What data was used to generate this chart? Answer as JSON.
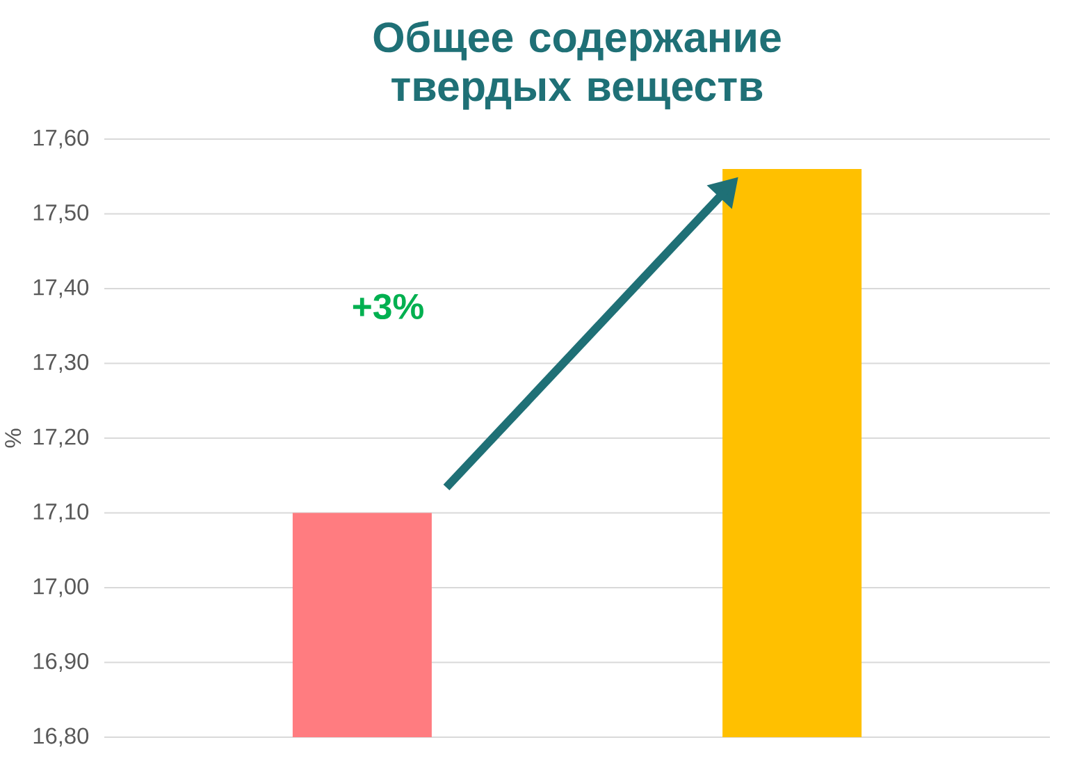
{
  "chart_data": {
    "type": "bar",
    "title": "Общее содержание твердых веществ",
    "ylabel": "%",
    "categories": [
      null,
      null
    ],
    "values": [
      17.1,
      17.56
    ],
    "colors": [
      "#ff7c80",
      "#ffc000"
    ],
    "ylim": [
      16.8,
      17.6
    ],
    "yticks": [
      {
        "value": 16.8,
        "label": "16,80"
      },
      {
        "value": 16.9,
        "label": "16,90"
      },
      {
        "value": 17.0,
        "label": "17,00"
      },
      {
        "value": 17.1,
        "label": "17,10"
      },
      {
        "value": 17.2,
        "label": "17,20"
      },
      {
        "value": 17.3,
        "label": "17,30"
      },
      {
        "value": 17.4,
        "label": "17,40"
      },
      {
        "value": 17.5,
        "label": "17,50"
      },
      {
        "value": 17.6,
        "label": "17,60"
      }
    ],
    "grid": "y",
    "annotations": [
      "+3%"
    ]
  }
}
